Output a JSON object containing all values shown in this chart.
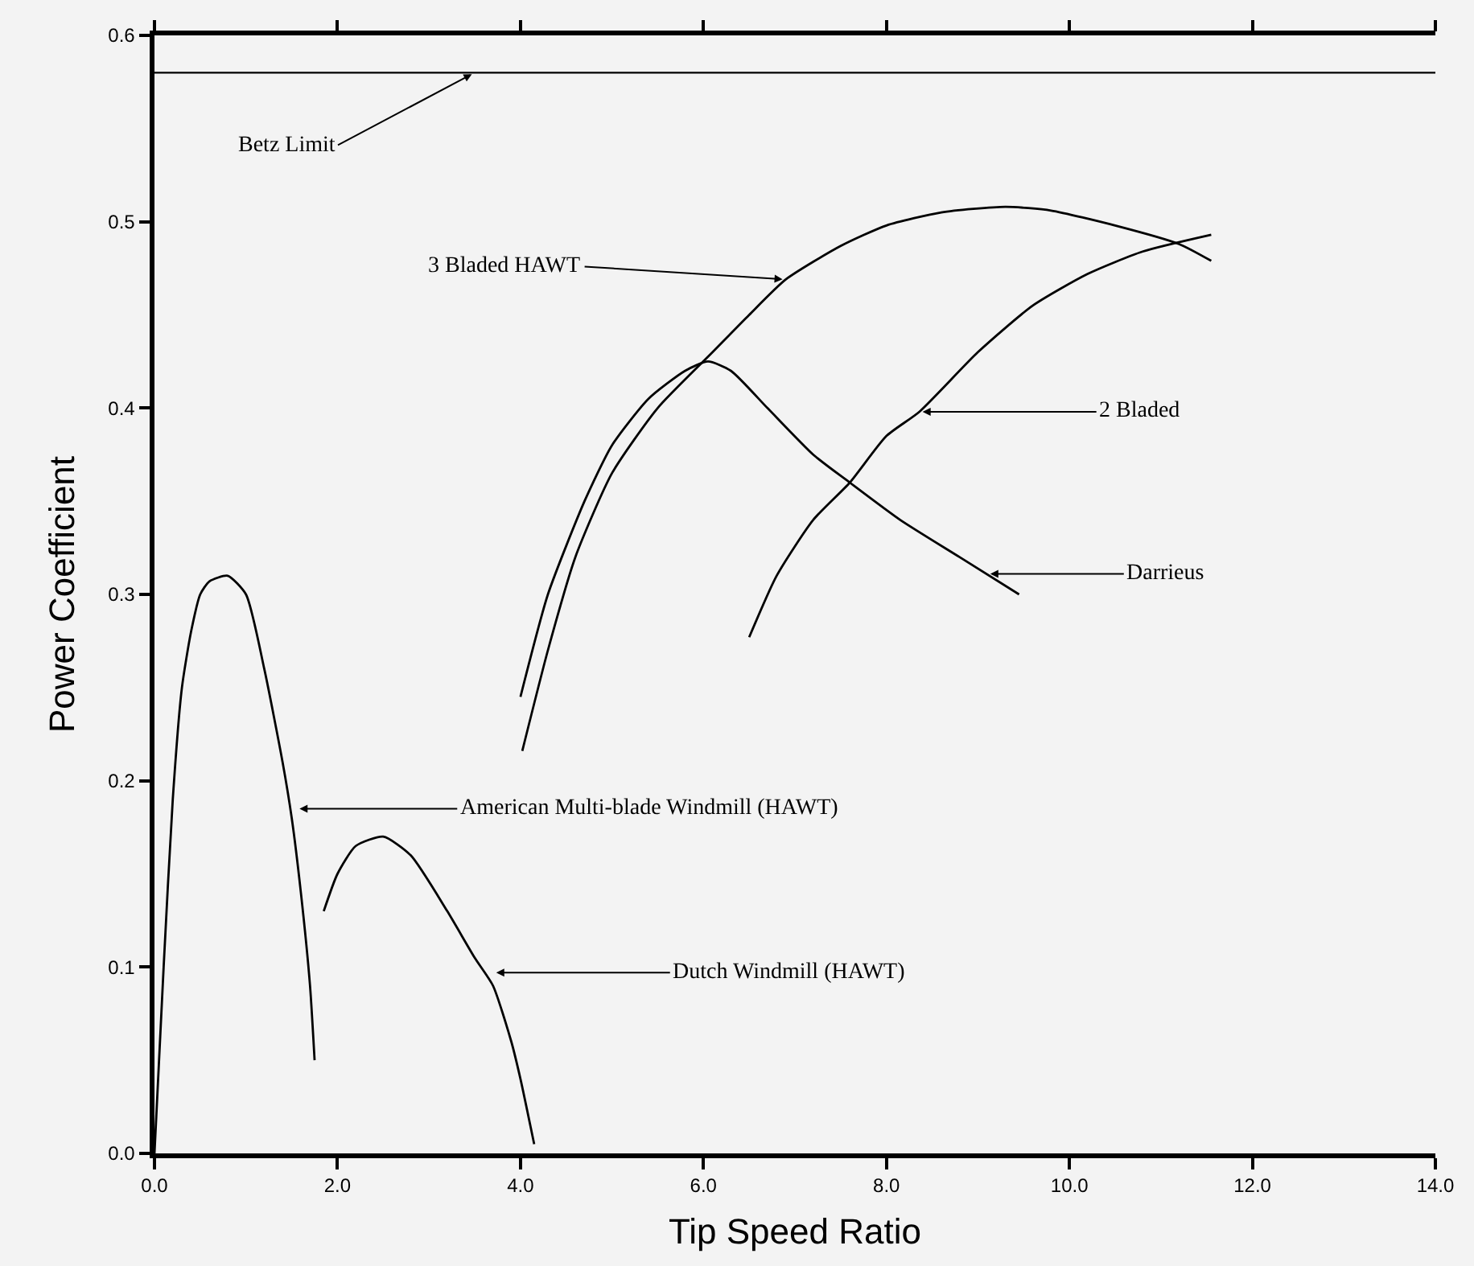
{
  "chart_data": {
    "type": "line",
    "xlabel": "Tip Speed Ratio",
    "ylabel": "Power Coefficient",
    "xlim": [
      0,
      14
    ],
    "ylim": [
      0,
      0.6
    ],
    "xticks": [
      {
        "value": 0,
        "label": "0.0"
      },
      {
        "value": 2,
        "label": "2.0"
      },
      {
        "value": 4,
        "label": "4.0"
      },
      {
        "value": 6,
        "label": "6.0"
      },
      {
        "value": 8,
        "label": "8.0"
      },
      {
        "value": 10,
        "label": "10.0"
      },
      {
        "value": 12,
        "label": "12.0"
      },
      {
        "value": 14,
        "label": "14.0"
      }
    ],
    "yticks": [
      {
        "value": 0,
        "label": "0.0"
      },
      0.1,
      0.2,
      0.3,
      0.4,
      0.5,
      0.6
    ],
    "grid": false,
    "marker": "none",
    "line_style": "solid",
    "series": [
      {
        "color": "#000000",
        "x": [
          0.0,
          0.1,
          0.2,
          0.3,
          0.4,
          0.5,
          0.6,
          0.8,
          1.0,
          1.2,
          1.4,
          1.5,
          1.6,
          1.7,
          1.75
        ],
        "values": [
          0.0,
          0.1,
          0.19,
          0.25,
          0.28,
          0.3,
          0.307,
          0.31,
          0.3,
          0.26,
          0.21,
          0.18,
          0.14,
          0.09,
          0.05
        ]
      },
      {
        "color": "#000000",
        "x": [
          1.85,
          2.0,
          2.2,
          2.5,
          2.8,
          3.2,
          3.5,
          3.7,
          3.9,
          4.0,
          4.15
        ],
        "values": [
          0.13,
          0.15,
          0.165,
          0.17,
          0.16,
          0.13,
          0.105,
          0.09,
          0.06,
          0.04,
          0.005
        ]
      },
      {
        "color": "#000000",
        "x": [
          4.0,
          4.3,
          4.7,
          5.0,
          5.4,
          5.8,
          6.05,
          6.3,
          6.7,
          7.2,
          7.6,
          8.15,
          8.8,
          9.45
        ],
        "values": [
          0.245,
          0.3,
          0.35,
          0.38,
          0.405,
          0.42,
          0.425,
          0.42,
          0.4,
          0.375,
          0.36,
          0.34,
          0.32,
          0.3
        ]
      },
      {
        "color": "#000000",
        "x": [
          4.02,
          4.3,
          4.6,
          5.0,
          5.5,
          6.1,
          6.5,
          6.9,
          7.5,
          8.0,
          8.6,
          9.3,
          9.8,
          10.5,
          11.2,
          11.55
        ],
        "values": [
          0.216,
          0.27,
          0.32,
          0.365,
          0.4,
          0.43,
          0.45,
          0.469,
          0.487,
          0.498,
          0.505,
          0.508,
          0.506,
          0.498,
          0.488,
          0.479
        ]
      },
      {
        "color": "#000000",
        "x": [
          6.5,
          6.8,
          7.2,
          7.6,
          8.0,
          8.36,
          9.0,
          9.6,
          10.2,
          10.8,
          11.55
        ],
        "values": [
          0.277,
          0.31,
          0.34,
          0.36,
          0.385,
          0.398,
          0.43,
          0.455,
          0.472,
          0.484,
          0.493
        ]
      }
    ],
    "ref_lines": [
      {
        "axis": "y",
        "value": 0.58,
        "color": "#000000"
      }
    ],
    "annotations": [
      {
        "text": "Betz Limit",
        "x": 3.5,
        "y": 0.58
      },
      {
        "text": "3 Bladed HAWT",
        "x": 6.9,
        "y": 0.469
      },
      {
        "text": "2 Bladed",
        "x": 8.36,
        "y": 0.398
      },
      {
        "text": "Darrieus",
        "x": 9.1,
        "y": 0.311
      },
      {
        "text": "American Multi-blade Windmill (HAWT)",
        "x": 1.55,
        "y": 0.185
      },
      {
        "text": "Dutch Windmill (HAWT)",
        "x": 3.7,
        "y": 0.097
      }
    ]
  }
}
